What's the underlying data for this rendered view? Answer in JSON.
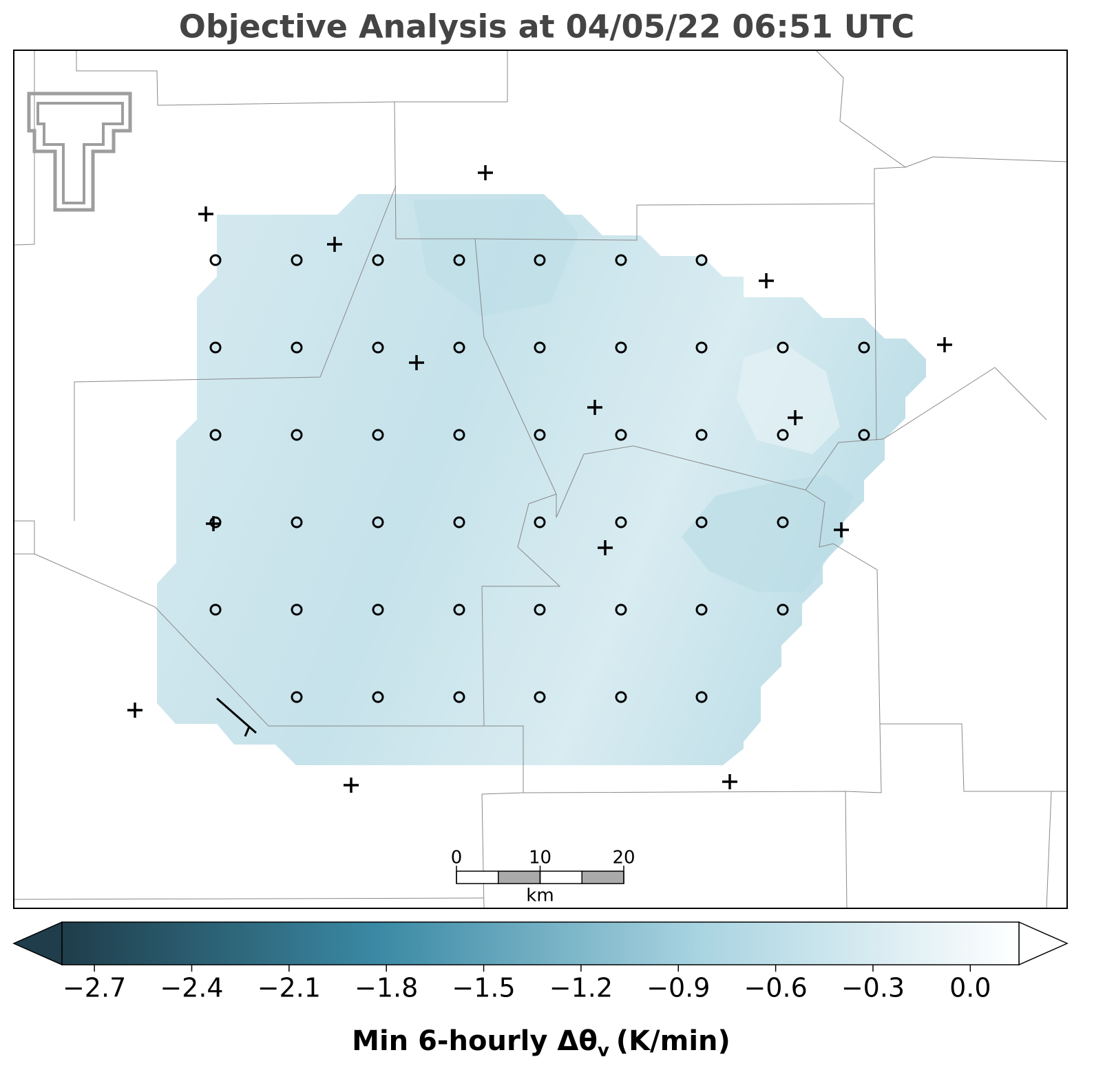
{
  "chart_data": {
    "type": "contour-map",
    "title": "Objective Analysis at 04/05/22 06:51 UTC",
    "colorbar": {
      "label": "Min 6-hourly Δθ",
      "label_subscript": "v",
      "label_unit": "(K/min)",
      "clim": [
        -2.8,
        0.15
      ],
      "colors": [
        "#1f3d4a",
        "#3b8aa5",
        "#a9d4e1",
        "#ffffff"
      ],
      "ticks": [
        {
          "value": -2.7,
          "label": "−2.7"
        },
        {
          "value": -2.4,
          "label": "−2.4"
        },
        {
          "value": -2.1,
          "label": "−2.1"
        },
        {
          "value": -1.8,
          "label": "−1.8"
        },
        {
          "value": -1.5,
          "label": "−1.5"
        },
        {
          "value": -1.2,
          "label": "−1.2"
        },
        {
          "value": -0.9,
          "label": "−0.9"
        },
        {
          "value": -0.6,
          "label": "−0.6"
        },
        {
          "value": -0.3,
          "label": "−0.3"
        },
        {
          "value": 0.0,
          "label": "0.0"
        }
      ]
    },
    "scale_bar": {
      "ticks": [
        0,
        10,
        20
      ],
      "unit": "km"
    }
  }
}
